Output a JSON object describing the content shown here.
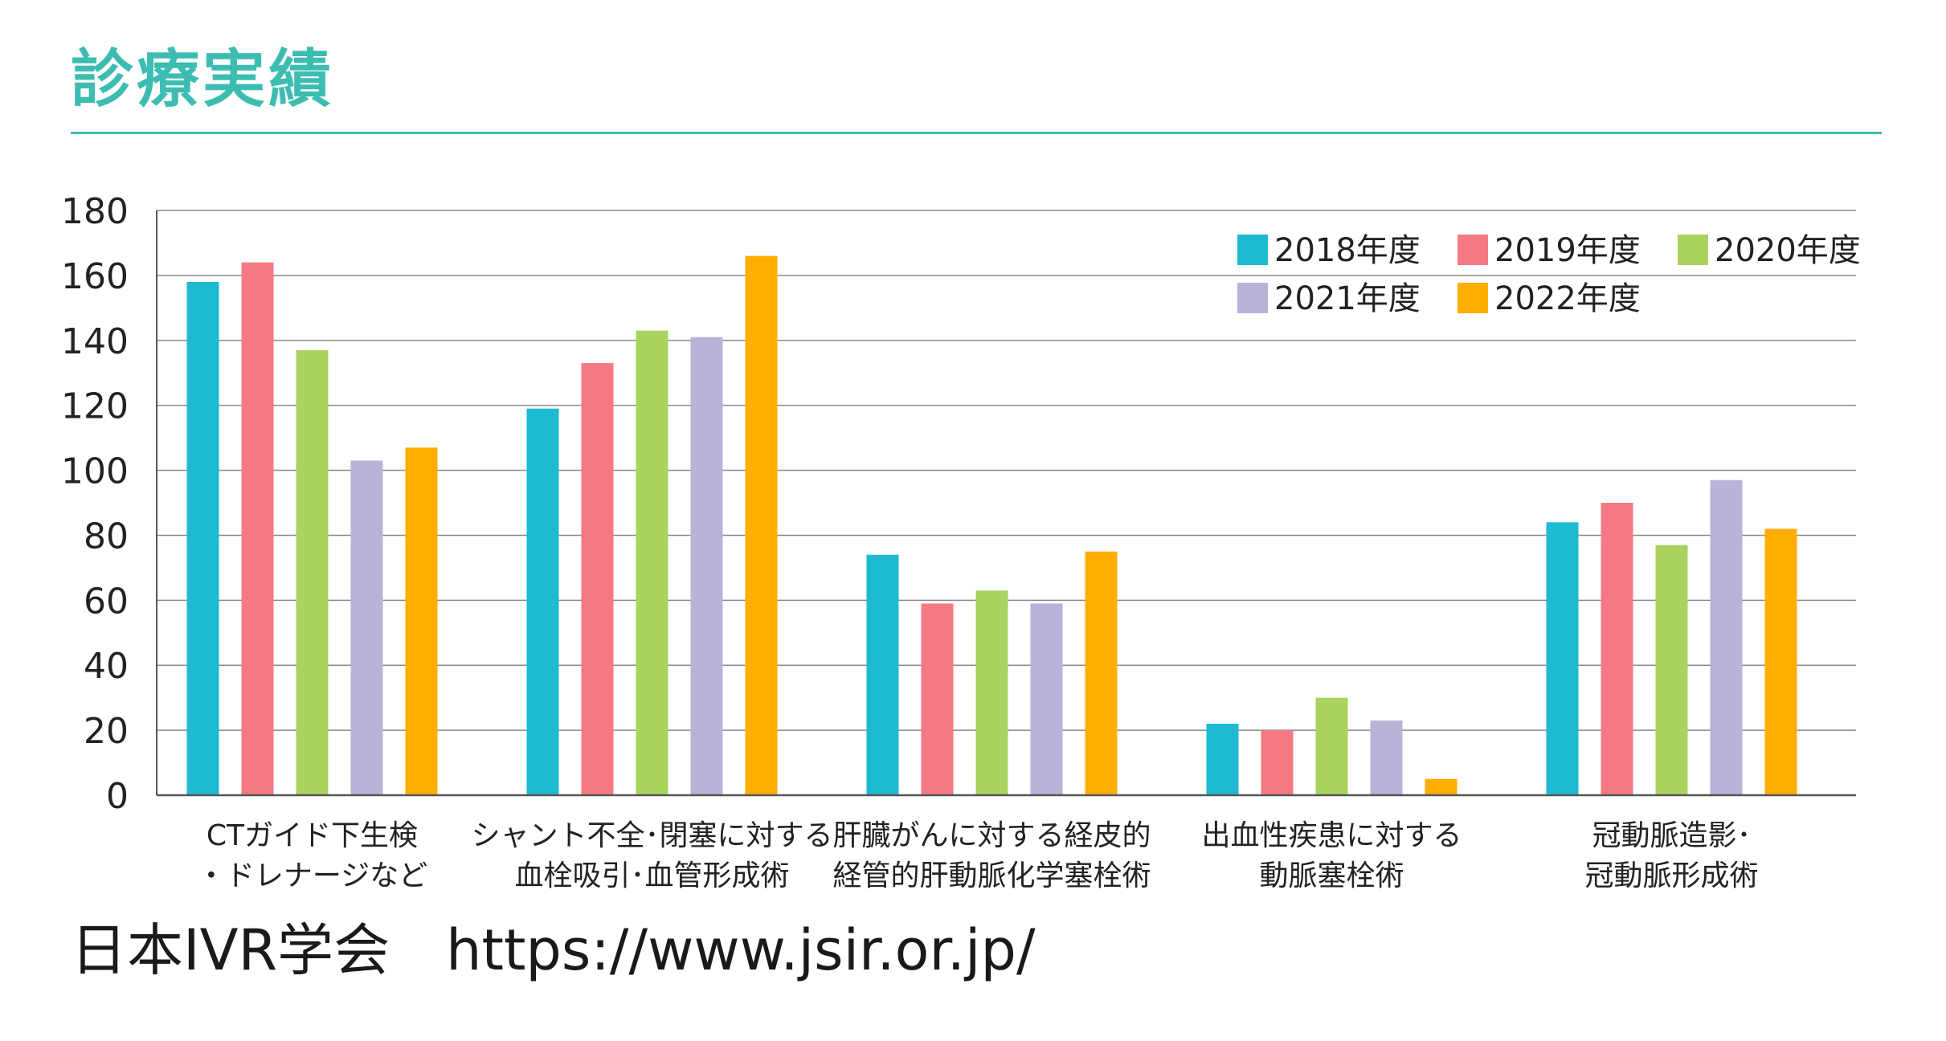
{
  "header": {
    "title": "診療実績"
  },
  "footer": {
    "text": "日本IVR学会　https://www.jsir.or.jp/"
  },
  "colors": {
    "accent": "#3dbdb1",
    "axis": "#555555",
    "grid": "#8a8a8a",
    "text": "#222222"
  },
  "chart_data": {
    "type": "bar",
    "title": "",
    "xlabel": "",
    "ylabel": "",
    "ylim": [
      0,
      180
    ],
    "yticks": [
      "0",
      "20",
      "40",
      "60",
      "80",
      "100",
      "120",
      "140",
      "160",
      "180"
    ],
    "grid": true,
    "legend_position": "top-right",
    "categories": [
      [
        "CTガイド下生検",
        "・ドレナージなど"
      ],
      [
        "シャント不全･閉塞に対する",
        "血栓吸引･血管形成術"
      ],
      [
        "肝臓がんに対する経皮的",
        "経管的肝動脈化学塞栓術"
      ],
      [
        "出血性疾患に対する",
        "動脈塞栓術"
      ],
      [
        "冠動脈造影･",
        "冠動脈形成術"
      ]
    ],
    "series": [
      {
        "name": "2018年度",
        "color": "#1dbad2",
        "values": [
          158,
          119,
          74,
          22,
          84
        ]
      },
      {
        "name": "2019年度",
        "color": "#f57983",
        "values": [
          164,
          133,
          59,
          20,
          90
        ]
      },
      {
        "name": "2020年度",
        "color": "#a9d35e",
        "values": [
          137,
          143,
          63,
          30,
          77
        ]
      },
      {
        "name": "2021年度",
        "color": "#b8b3d8",
        "values": [
          103,
          141,
          59,
          23,
          97
        ]
      },
      {
        "name": "2022年度",
        "color": "#ffae00",
        "values": [
          107,
          166,
          75,
          5,
          82
        ]
      }
    ]
  }
}
